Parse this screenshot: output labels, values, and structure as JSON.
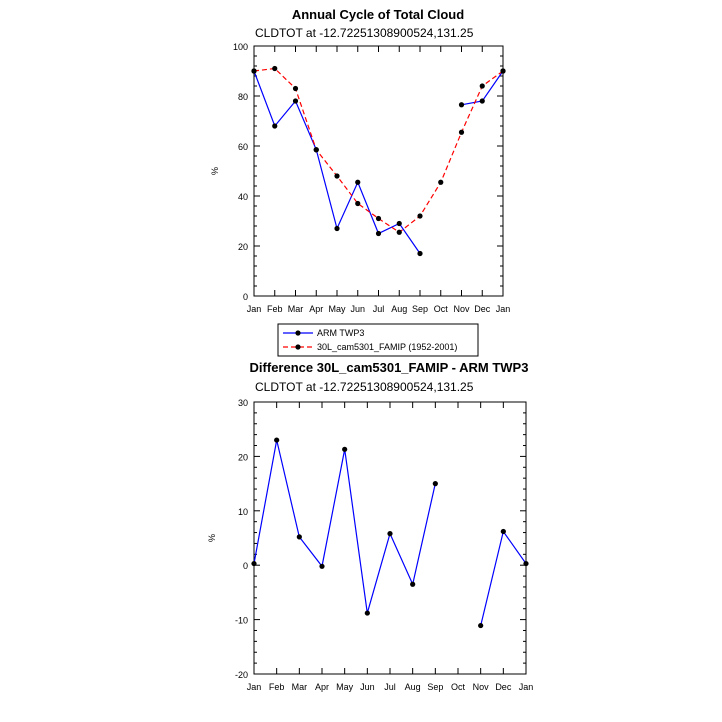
{
  "chart_data": [
    {
      "type": "line",
      "title": "Annual Cycle of Total Cloud",
      "subtitle": "CLDTOT at -12.72251308900524,131.25",
      "ylabel": "%",
      "ylim": [
        0,
        100
      ],
      "yticks": [
        0,
        20,
        40,
        60,
        80,
        100
      ],
      "categories": [
        "Jan",
        "Feb",
        "Mar",
        "Apr",
        "May",
        "Jun",
        "Jul",
        "Aug",
        "Sep",
        "Oct",
        "Nov",
        "Dec",
        "Jan"
      ],
      "series": [
        {
          "name": "ARM TWP3",
          "color": "#0000ff",
          "dash": "solid",
          "values": [
            90,
            68,
            78,
            58.5,
            27,
            45.5,
            25,
            29,
            17,
            null,
            76.5,
            78,
            90
          ]
        },
        {
          "name": "30L_cam5301_FAMIP (1952-2001)",
          "color": "#ff0000",
          "dash": "dashed",
          "values": [
            90,
            91,
            83,
            58.5,
            48,
            37,
            31,
            25.5,
            32,
            45.5,
            65.5,
            84,
            90
          ]
        }
      ]
    },
    {
      "type": "line",
      "title": "Difference 30L_cam5301_FAMIP - ARM TWP3",
      "subtitle": "CLDTOT at -12.72251308900524,131.25",
      "ylabel": "%",
      "ylim": [
        -20,
        30
      ],
      "yticks": [
        -20,
        -10,
        0,
        10,
        20,
        30
      ],
      "categories": [
        "Jan",
        "Feb",
        "Mar",
        "Apr",
        "May",
        "Jun",
        "Jul",
        "Aug",
        "Sep",
        "Oct",
        "Nov",
        "Dec",
        "Jan"
      ],
      "series": [
        {
          "name": "Difference",
          "color": "#0000ff",
          "dash": "solid",
          "values": [
            0.3,
            23,
            5.2,
            -0.2,
            21.3,
            -8.8,
            5.8,
            -3.5,
            15,
            null,
            -11.1,
            6.2,
            0.3
          ]
        }
      ]
    }
  ]
}
